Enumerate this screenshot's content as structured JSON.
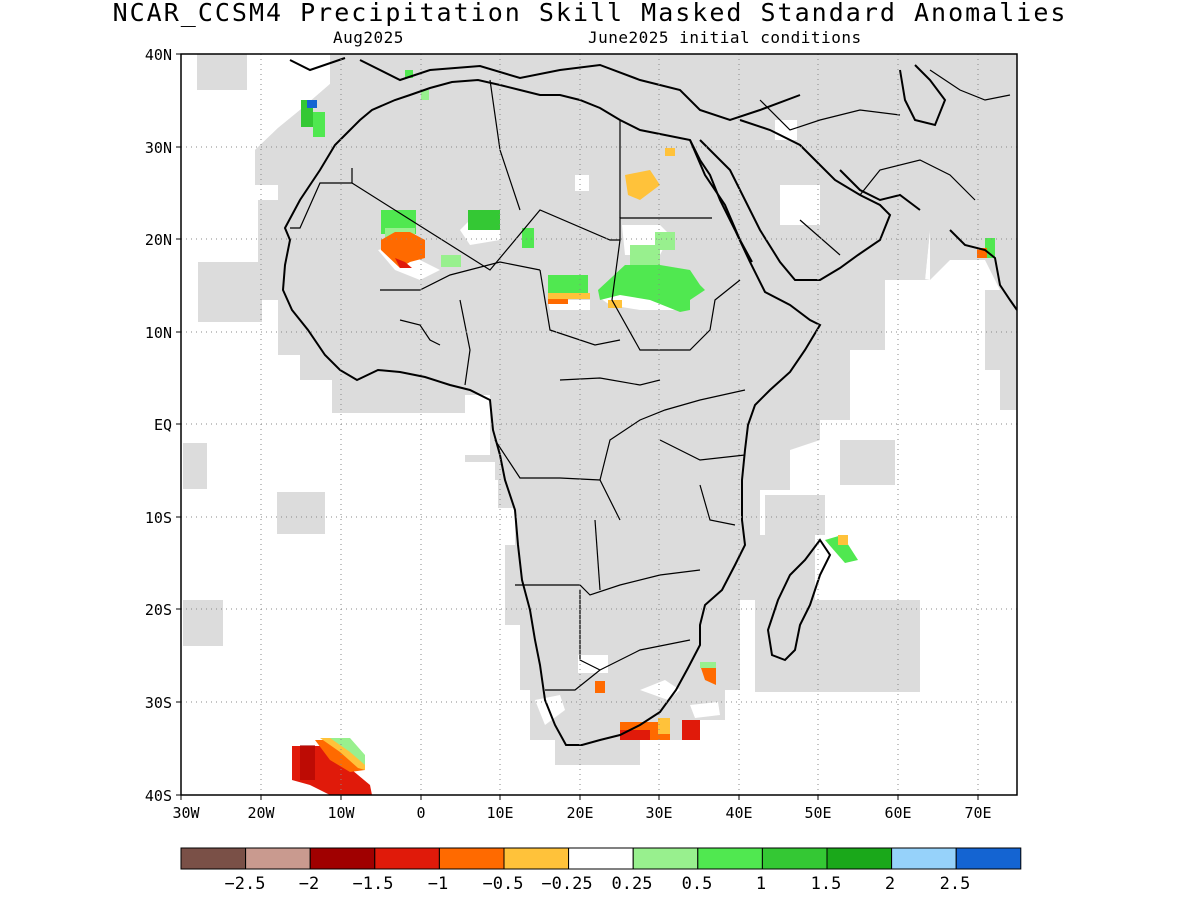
{
  "title": "NCAR_CCSM4 Precipitation Skill Masked Standard Anomalies",
  "subtitle_left": "Aug2025",
  "subtitle_right": "June2025 initial conditions",
  "map": {
    "lon_range": [
      -30,
      75
    ],
    "lat_range": [
      -40,
      40
    ],
    "grid": true,
    "lat_labels": [
      "40N",
      "30N",
      "20N",
      "10N",
      "EQ",
      "10S",
      "20S",
      "30S",
      "40S"
    ],
    "lon_labels": [
      "30W",
      "20W",
      "10W",
      "0",
      "10E",
      "20E",
      "30E",
      "40E",
      "50E",
      "60E",
      "70E"
    ],
    "land_mask_color": "#dcdcdc"
  },
  "colorbar": {
    "colors": [
      "#7a5047",
      "#c99a8f",
      "#a00000",
      "#e01a0a",
      "#ff6a00",
      "#ffc23a",
      "#ffffff",
      "#98f08e",
      "#50e850",
      "#34c834",
      "#1aa81a",
      "#96d2fa",
      "#1464d2"
    ],
    "tick_labels": [
      "-2.5",
      "-2",
      "-1.5",
      "-1",
      "-0.5",
      "-0.25",
      "0.25",
      "0.5",
      "1",
      "1.5",
      "2",
      "2.5"
    ]
  }
}
